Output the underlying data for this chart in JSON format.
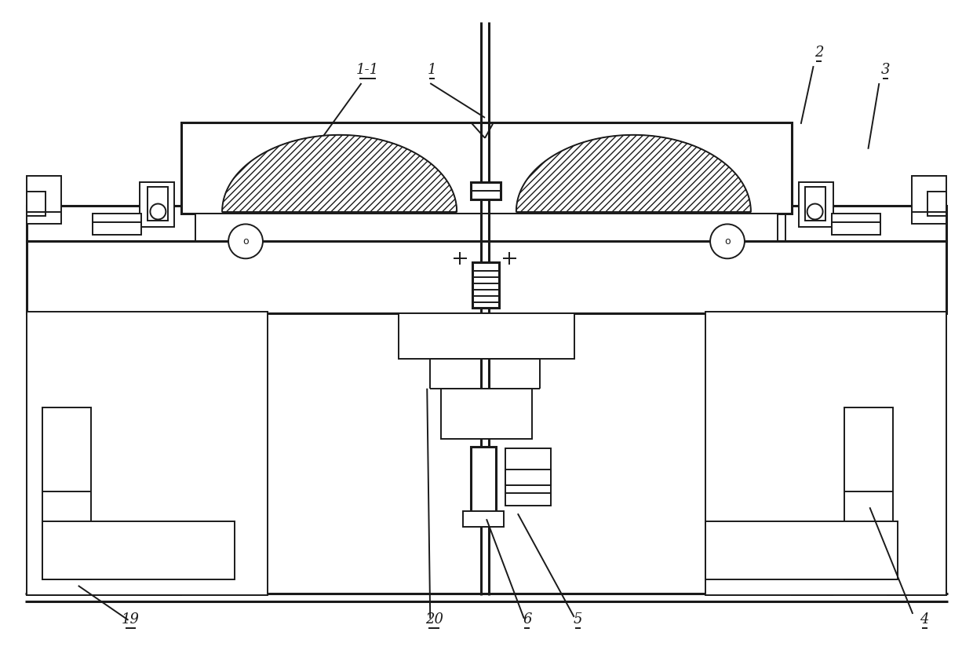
{
  "bg": "#ffffff",
  "lc": "#1a1a1a",
  "lw": 1.4,
  "lw2": 2.2,
  "fw": 12.4,
  "fh": 8.47,
  "dpi": 100
}
